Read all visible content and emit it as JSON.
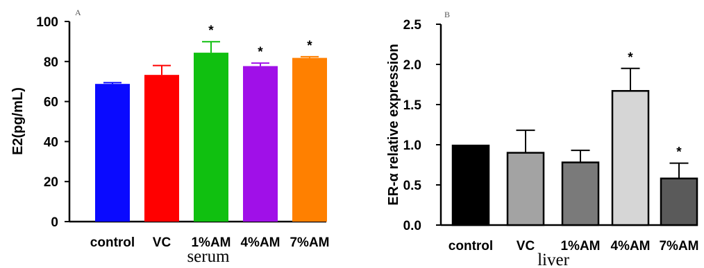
{
  "chart_data": [
    {
      "panel_label": "A",
      "type": "bar",
      "categories": [
        "control",
        "VC",
        "1%AM",
        "4%AM",
        "7%AM"
      ],
      "values": [
        68.8,
        73.3,
        84.4,
        77.7,
        81.8
      ],
      "errors": [
        0.6,
        4.7,
        5.5,
        1.5,
        0.6
      ],
      "significance": [
        "",
        "",
        "*",
        "*",
        "*"
      ],
      "colors": [
        "#0a0aff",
        "#ff0000",
        "#10c010",
        "#a010e8",
        "#ff8000"
      ],
      "error_colors": [
        "#0a0aff",
        "#ff0000",
        "#10c010",
        "#a010e8",
        "#ff8000"
      ],
      "ylabel": "E2(pg/mL)",
      "xlabel": "serum",
      "ylim": [
        0,
        100
      ],
      "yticks": [
        "0",
        "20",
        "40",
        "60",
        "80",
        "100"
      ],
      "bar_outline": "none"
    },
    {
      "panel_label": "B",
      "type": "bar",
      "categories": [
        "control",
        "VC",
        "1%AM",
        "4%AM",
        "7%AM"
      ],
      "values": [
        0.99,
        0.9,
        0.78,
        1.67,
        0.58
      ],
      "errors": [
        0.0,
        0.28,
        0.15,
        0.28,
        0.19
      ],
      "significance": [
        "",
        "",
        "",
        "*",
        "*"
      ],
      "colors": [
        "#000000",
        "#a3a3a3",
        "#7a7a7a",
        "#d6d6d6",
        "#5a5a5a"
      ],
      "error_colors": [
        "#000000",
        "#000000",
        "#000000",
        "#000000",
        "#000000"
      ],
      "ylabel": "ER-α relative expression",
      "xlabel": "liver",
      "ylim": [
        0,
        2.5
      ],
      "yticks": [
        "0.0",
        "0.5",
        "1.0",
        "1.5",
        "2.0",
        "2.5"
      ],
      "bar_outline": "#000000"
    }
  ]
}
